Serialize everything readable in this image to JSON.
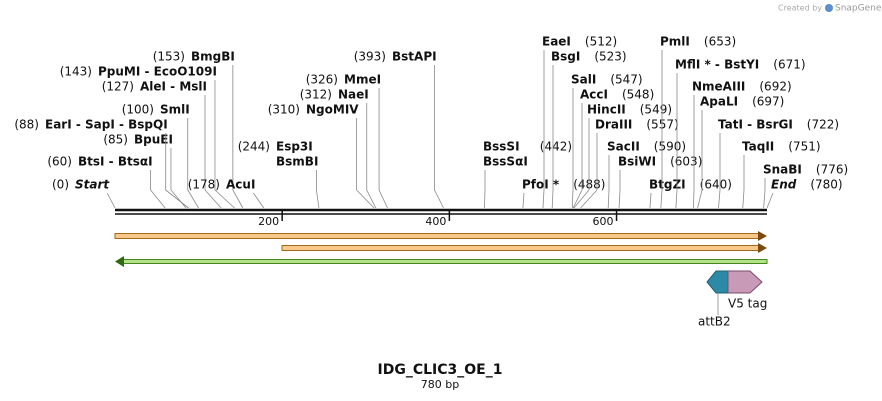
{
  "header": {
    "credit": "Created by",
    "brand": "SnapGene"
  },
  "map": {
    "title": "IDG_CLIC3_OE_1",
    "length": {
      "value": 780,
      "label": "780 bp"
    },
    "ticks": [
      200,
      400,
      600
    ],
    "sites": [
      {
        "names": [
          "Start"
        ],
        "pos": {
          "value": 0,
          "label": "(0)"
        }
      },
      {
        "names": [
          "BtsI - BtsαI"
        ],
        "pos": {
          "value": 60,
          "label": "(60)"
        }
      },
      {
        "names": [
          "BpuEI"
        ],
        "pos": {
          "value": 85,
          "label": "(85)"
        }
      },
      {
        "names": [
          "EarI - SapI - BspQI"
        ],
        "pos": {
          "value": 88,
          "label": "(88)"
        }
      },
      {
        "names": [
          "SmlI"
        ],
        "pos": {
          "value": 100,
          "label": "(100)"
        }
      },
      {
        "names": [
          "AleI - MslI"
        ],
        "pos": {
          "value": 127,
          "label": "(127)"
        }
      },
      {
        "names": [
          "PpuMI - EcoO109I"
        ],
        "pos": {
          "value": 143,
          "label": "(143)"
        }
      },
      {
        "names": [
          "BmgBI"
        ],
        "pos": {
          "value": 153,
          "label": "(153)"
        }
      },
      {
        "names": [
          "AcuI"
        ],
        "pos": {
          "value": 178,
          "label": "(178)"
        }
      },
      {
        "names": [
          "Esp3I",
          "BsmBI"
        ],
        "pos": {
          "value": 244,
          "label": "(244)"
        }
      },
      {
        "names": [
          "NgoMIV"
        ],
        "pos": {
          "value": 310,
          "label": "(310)"
        }
      },
      {
        "names": [
          "NaeI"
        ],
        "pos": {
          "value": 312,
          "label": "(312)"
        }
      },
      {
        "names": [
          "MmeI"
        ],
        "pos": {
          "value": 326,
          "label": "(326)"
        }
      },
      {
        "names": [
          "BstAPI"
        ],
        "pos": {
          "value": 393,
          "label": "(393)"
        }
      },
      {
        "names": [
          "BssSI",
          "BssSαI"
        ],
        "pos": {
          "value": 442,
          "label": "(442)"
        }
      },
      {
        "names": [
          "PfoI *"
        ],
        "pos": {
          "value": 488,
          "label": "(488)"
        }
      },
      {
        "names": [
          "EaeI"
        ],
        "pos": {
          "value": 512,
          "label": "(512)"
        }
      },
      {
        "names": [
          "BsgI"
        ],
        "pos": {
          "value": 523,
          "label": "(523)"
        }
      },
      {
        "names": [
          "SalI"
        ],
        "pos": {
          "value": 547,
          "label": "(547)"
        }
      },
      {
        "names": [
          "AccI"
        ],
        "pos": {
          "value": 548,
          "label": "(548)"
        }
      },
      {
        "names": [
          "HincII"
        ],
        "pos": {
          "value": 549,
          "label": "(549)"
        }
      },
      {
        "names": [
          "DraIII"
        ],
        "pos": {
          "value": 557,
          "label": "(557)"
        }
      },
      {
        "names": [
          "SacII"
        ],
        "pos": {
          "value": 590,
          "label": "(590)"
        }
      },
      {
        "names": [
          "BsiWI"
        ],
        "pos": {
          "value": 603,
          "label": "(603)"
        }
      },
      {
        "names": [
          "BtgZI"
        ],
        "pos": {
          "value": 640,
          "label": "(640)"
        }
      },
      {
        "names": [
          "PmlI"
        ],
        "pos": {
          "value": 653,
          "label": "(653)"
        }
      },
      {
        "names": [
          "MflI * - BstYI"
        ],
        "pos": {
          "value": 671,
          "label": "(671)"
        }
      },
      {
        "names": [
          "NmeAIII"
        ],
        "pos": {
          "value": 692,
          "label": "(692)"
        }
      },
      {
        "names": [
          "ApaLI"
        ],
        "pos": {
          "value": 697,
          "label": "(697)"
        }
      },
      {
        "names": [
          "TatI - BsrGI"
        ],
        "pos": {
          "value": 722,
          "label": "(722)"
        }
      },
      {
        "names": [
          "TaqII"
        ],
        "pos": {
          "value": 751,
          "label": "(751)"
        }
      },
      {
        "names": [
          "SnaBI"
        ],
        "pos": {
          "value": 776,
          "label": "(776)"
        }
      },
      {
        "names": [
          "End"
        ],
        "pos": {
          "value": 780,
          "label": "(780)"
        }
      }
    ],
    "features": [
      "V5 tag",
      "attB2"
    ]
  }
}
